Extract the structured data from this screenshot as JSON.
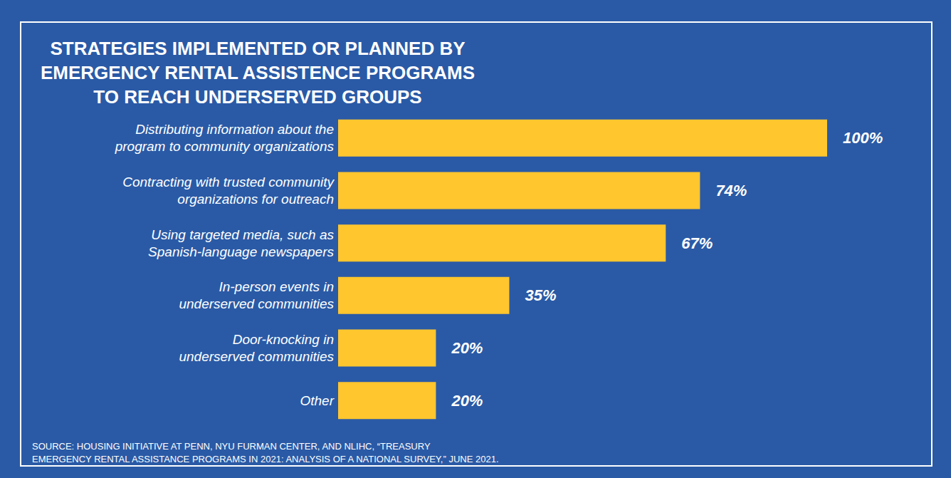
{
  "chart_data": {
    "type": "bar",
    "title": "STRATEGIES IMPLEMENTED OR PLANNED BY\nEMERGENCY RENTAL ASSISTENCE PROGRAMS\nTO REACH UNDERSERVED GROUPS",
    "categories": [
      "Distributing information about the\nprogram to community organizations",
      "Contracting with trusted community\norganizations for outreach",
      "Using targeted media, such as\nSpanish-language newspapers",
      "In-person events in\nunderserved communities",
      "Door-knocking in\nunderserved communities",
      "Other"
    ],
    "values": [
      100,
      74,
      67,
      35,
      20,
      20
    ],
    "value_labels": [
      "100%",
      "74%",
      "67%",
      "35%",
      "20%",
      "20%"
    ],
    "color": "#ffc62e",
    "xlim": [
      0,
      100
    ],
    "orientation": "horizontal",
    "data_labels": true,
    "tick_labels": false,
    "grid": false,
    "source": "SOURCE: HOUSING INITIATIVE AT PENN, NYU FURMAN CENTER, AND NLIHC, “TREASURY\nEMERGENCY RENTAL ASSISTANCE PROGRAMS IN 2021: ANALYSIS OF A NATIONAL SURVEY,” JUNE 2021."
  }
}
